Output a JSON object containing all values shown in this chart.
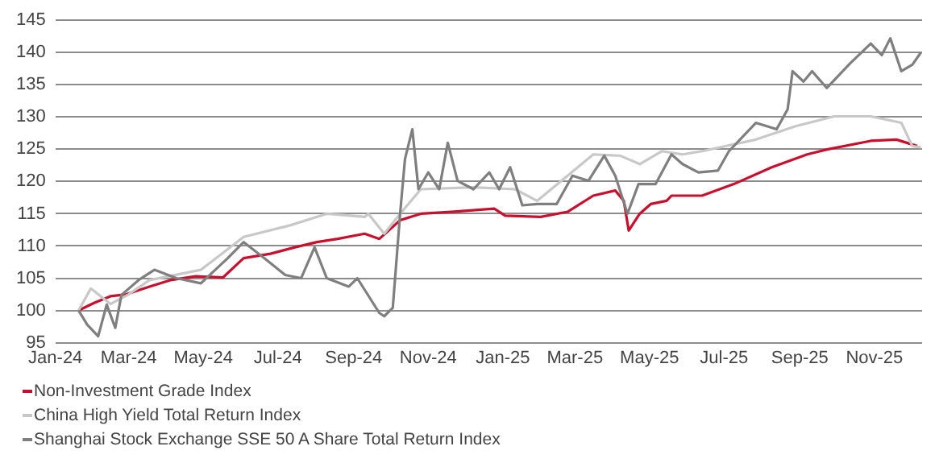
{
  "chart_data": {
    "type": "line",
    "xlim": [
      "2024-01-01",
      "2025-12-10"
    ],
    "xticks": [
      {
        "value": "2024-01-01",
        "label": "Jan-24"
      },
      {
        "value": "2024-03-01",
        "label": "Mar-24"
      },
      {
        "value": "2024-05-01",
        "label": "May-24"
      },
      {
        "value": "2024-07-01",
        "label": "Jul-24"
      },
      {
        "value": "2024-09-01",
        "label": "Sep-24"
      },
      {
        "value": "2024-11-01",
        "label": "Nov-24"
      },
      {
        "value": "2025-01-01",
        "label": "Jan-25"
      },
      {
        "value": "2025-03-01",
        "label": "Mar-25"
      },
      {
        "value": "2025-05-01",
        "label": "May-25"
      },
      {
        "value": "2025-07-01",
        "label": "Jul-25"
      },
      {
        "value": "2025-09-01",
        "label": "Sep-25"
      },
      {
        "value": "2025-11-01",
        "label": "Nov-25"
      }
    ],
    "ylim": [
      95,
      145
    ],
    "yticks": [
      95,
      100,
      105,
      110,
      115,
      120,
      125,
      130,
      135,
      140,
      145
    ],
    "grid": "y",
    "legend": "bottom left",
    "marker": "none",
    "line_style": "solid",
    "series": [
      {
        "name": "Non-Investment Grade Index",
        "color": "#c8102e",
        "x": [
          "2024-01-20",
          "2024-02-02",
          "2024-02-15",
          "2024-02-28",
          "2024-03-18",
          "2024-04-04",
          "2024-04-25",
          "2024-05-17",
          "2024-06-03",
          "2024-06-25",
          "2024-07-15",
          "2024-08-02",
          "2024-08-19",
          "2024-09-10",
          "2024-09-22",
          "2024-10-09",
          "2024-10-26",
          "2024-11-20",
          "2024-12-25",
          "2025-01-03",
          "2025-02-01",
          "2025-02-23",
          "2025-03-16",
          "2025-04-03",
          "2025-04-10",
          "2025-04-14",
          "2025-04-23",
          "2025-05-02",
          "2025-05-15",
          "2025-05-19",
          "2025-06-13",
          "2025-07-09",
          "2025-08-09",
          "2025-09-07",
          "2025-09-24",
          "2025-10-29",
          "2025-11-19",
          "2025-12-06"
        ],
        "values": [
          100,
          101.2,
          102.2,
          102.5,
          103.7,
          104.7,
          105.3,
          105.1,
          108.1,
          108.8,
          109.8,
          110.6,
          111.1,
          111.9,
          111.1,
          114,
          115,
          115.3,
          115.8,
          114.7,
          114.5,
          115.3,
          117.8,
          118.6,
          117,
          112.4,
          115,
          116.5,
          117,
          117.8,
          117.8,
          119.6,
          122.2,
          124.2,
          125,
          126.3,
          126.5,
          125.5
        ]
      },
      {
        "name": "China High Yield Total Return Index",
        "color": "#c8c8c8",
        "x": [
          "2024-01-20",
          "2024-01-30",
          "2024-02-15",
          "2024-03-01",
          "2024-03-18",
          "2024-04-29",
          "2024-06-03",
          "2024-07-11",
          "2024-08-10",
          "2024-09-10",
          "2024-09-13",
          "2024-09-26",
          "2024-10-09",
          "2024-10-26",
          "2024-12-08",
          "2025-01-11",
          "2025-01-29",
          "2025-02-23",
          "2025-03-16",
          "2025-04-07",
          "2025-04-23",
          "2025-05-11",
          "2025-05-28",
          "2025-06-13",
          "2025-07-27",
          "2025-08-29",
          "2025-09-29",
          "2025-10-29",
          "2025-11-23",
          "2025-12-02",
          "2025-12-09"
        ],
        "values": [
          100,
          103.4,
          101,
          102.5,
          104.7,
          106.3,
          111.4,
          113.2,
          115,
          114.5,
          115,
          111.9,
          115,
          118.8,
          119.1,
          118.8,
          117,
          120.9,
          124.2,
          124,
          122.7,
          124.7,
          124.2,
          124.7,
          126.5,
          128.6,
          130.1,
          130.1,
          129.1,
          125.5,
          125.3
        ]
      },
      {
        "name": "Shanghai Stock Exchange SSE 50 A Share Total Return Index",
        "color": "#7f7f7f",
        "x": [
          "2024-01-20",
          "2024-01-27",
          "2024-02-05",
          "2024-02-12",
          "2024-02-19",
          "2024-02-24",
          "2024-03-09",
          "2024-03-22",
          "2024-04-09",
          "2024-04-29",
          "2024-05-21",
          "2024-06-03",
          "2024-06-20",
          "2024-07-07",
          "2024-07-20",
          "2024-07-31",
          "2024-08-10",
          "2024-08-28",
          "2024-09-04",
          "2024-09-22",
          "2024-09-26",
          "2024-10-03",
          "2024-10-09",
          "2024-10-13",
          "2024-10-19",
          "2024-10-24",
          "2024-11-01",
          "2024-11-10",
          "2024-11-17",
          "2024-11-25",
          "2024-12-08",
          "2024-12-21",
          "2024-12-29",
          "2025-01-07",
          "2025-01-17",
          "2025-01-29",
          "2025-02-14",
          "2025-02-27",
          "2025-03-12",
          "2025-03-25",
          "2025-04-03",
          "2025-04-13",
          "2025-04-22",
          "2025-05-06",
          "2025-05-19",
          "2025-05-28",
          "2025-06-10",
          "2025-06-26",
          "2025-07-05",
          "2025-07-27",
          "2025-08-13",
          "2025-08-22",
          "2025-08-26",
          "2025-09-04",
          "2025-09-11",
          "2025-09-23",
          "2025-10-12",
          "2025-10-29",
          "2025-11-07",
          "2025-11-14",
          "2025-11-23",
          "2025-12-02",
          "2025-12-09"
        ],
        "values": [
          100,
          97.8,
          96,
          100.9,
          97.3,
          102.4,
          104.7,
          106.3,
          105,
          104.2,
          108.1,
          110.6,
          108.1,
          105.5,
          105,
          109.8,
          105,
          103.7,
          105,
          99.6,
          99.1,
          100.4,
          115,
          123.5,
          128.1,
          118.8,
          121.4,
          118.8,
          126,
          120.1,
          118.8,
          121.4,
          118.8,
          122.2,
          116.3,
          116.5,
          116.5,
          120.9,
          120.1,
          124,
          120.9,
          115,
          119.6,
          119.6,
          124.2,
          122.7,
          121.4,
          121.7,
          124.7,
          129.1,
          128.1,
          131.2,
          137.1,
          135.5,
          137.1,
          134.5,
          138.3,
          141.4,
          139.6,
          142.2,
          137.1,
          138.1,
          140
        ]
      }
    ]
  }
}
